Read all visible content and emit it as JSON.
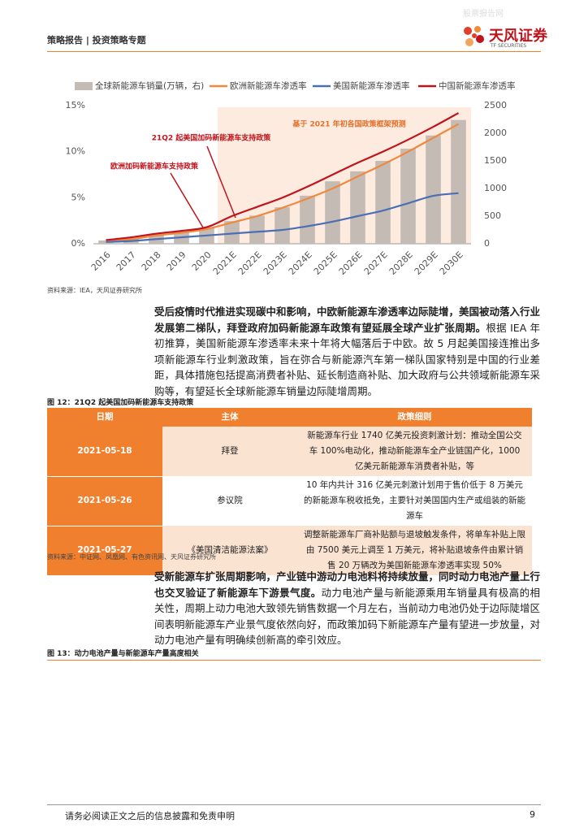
{
  "header": {
    "title": "策略报告 | 投资策略专题",
    "logo": "天风证券",
    "logo_sub": "TF SECURITIES",
    "watermark": "股票报告网"
  },
  "chart_data": {
    "type": "combo",
    "categories": [
      "2016",
      "2017",
      "2018",
      "2019",
      "2020",
      "2021E",
      "2022E",
      "2023E",
      "2024E",
      "2025E",
      "2026E",
      "2027E",
      "2028E",
      "2029E",
      "2030E"
    ],
    "series": [
      {
        "name": "全球新能源车销量(万辆，右)",
        "type": "bar",
        "axis": "y2",
        "color": "#c4bbb4",
        "values": [
          60,
          100,
          180,
          220,
          290,
          410,
          510,
          660,
          870,
          1130,
          1310,
          1500,
          1720,
          1960,
          2240
        ]
      },
      {
        "name": "欧洲新能源车渗透率",
        "type": "line",
        "color": "#f0883e",
        "values": [
          0.3,
          0.5,
          0.9,
          1.2,
          1.6,
          2.3,
          3.0,
          3.9,
          4.9,
          6.0,
          7.3,
          8.6,
          10.0,
          11.5,
          13.0
        ]
      },
      {
        "name": "美国新能源车渗透率",
        "type": "line",
        "color": "#4a6fb5",
        "values": [
          0.2,
          0.3,
          0.5,
          0.7,
          0.9,
          1.1,
          1.3,
          1.5,
          1.9,
          2.4,
          3.0,
          3.6,
          4.4,
          5.2,
          5.5
        ]
      },
      {
        "name": "中国新能源车渗透率",
        "type": "line",
        "color": "#c0141d",
        "values": [
          0.4,
          0.7,
          1.1,
          1.4,
          1.8,
          3.0,
          4.0,
          5.0,
          6.2,
          7.5,
          8.8,
          10.0,
          11.3,
          12.7,
          14.2
        ]
      }
    ],
    "ylim": [
      0,
      15
    ],
    "yticks": [
      {
        "value": 0,
        "label": "0%"
      },
      {
        "value": 5,
        "label": "5%"
      },
      {
        "value": 10,
        "label": "10%"
      },
      {
        "value": 15,
        "label": "15%"
      }
    ],
    "y2lim": [
      0,
      2500
    ],
    "y2ticks": [
      0,
      500,
      1000,
      1500,
      2000,
      2500
    ],
    "annotations": [
      "基于 2021 年初各国政策框架预测",
      "21Q2 起美国加码新能源车支持政策",
      "欧洲加码新能源车支持政策"
    ],
    "source": "资料来源：IEA，天风证券研究所"
  },
  "paragraphs": [
    {
      "bold": "受后疫情时代推进实现碳中和影响，中欧新能源车渗透率边际陡增，美国被动落入行业发展第二梯队，拜登政府加码新能源车政策有望延展全球产业扩张周期。",
      "text": "根据 IEA 年初推算，美国新能源车渗透率未来十年将大幅落后于中欧。故 5 月起美国接连推出多项新能源车行业刺激政策，旨在弥合与新能源汽车第一梯队国家特别是中国的行业差距，具体措施包括提高消费者补贴、延长制造商补贴、加大政府与公共领域新能源车采购等，有望延长全球新能源车销量边际陡增周期。"
    },
    {
      "bold": "受新能源车扩张周期影响，产业链中游动力电池料将持续放量，同时动力电池产量上行也交叉验证了新能源车下游景气度。",
      "text": "动力电池产量与新能源乘用车销量具有极高的相关性，周期上动力电池大致领先销售数据一个月左右，当前动力电池仍处于边际陡增区间表明新能源车产业景气度依然向好，而政策加码下新能源车产量有望进一步放量，对动力电池产量有明确续创新高的牵引效应。"
    }
  ],
  "figure12": {
    "caption": "图 12：21Q2 起美国加码新能源车支持政策",
    "table": {
      "header": [
        "日期",
        "主体",
        "政策细则"
      ],
      "rows": [
        [
          "2021-05-18",
          "拜登",
          "新能源车行业 1740 亿美元投资刺激计划：推动全国公交车 100%电动化，推动新能源车全产业链国产化，1000 亿美元新能源车消费者补贴，等"
        ],
        [
          "2021-05-26",
          "参议院",
          "10 年内共计 316 亿美元刺激计划用于售价低于 8 万美元的新能源车税收抵免，主要针对美国国内生产或组装的新能源车"
        ],
        [
          "2021-05-27",
          "《美国清洁能源法案》",
          "调整新能源车厂商补贴额与退坡触发条件，将单车补贴上限由 7500 美元上调至 1 万美元，将补贴退坡条件由累计销售 20 万辆改为美国新能源车渗透率实现 50%"
        ]
      ]
    },
    "source": "资料来源：中证网、凤凰网、有色资讯网、天风证券研究所"
  },
  "figure13": {
    "caption": "图 13：动力电池产量与新能源车产量高度相关"
  },
  "footer": {
    "disclaimer": "请务必阅读正文之后的信息披露和免责申明",
    "page": 9
  }
}
